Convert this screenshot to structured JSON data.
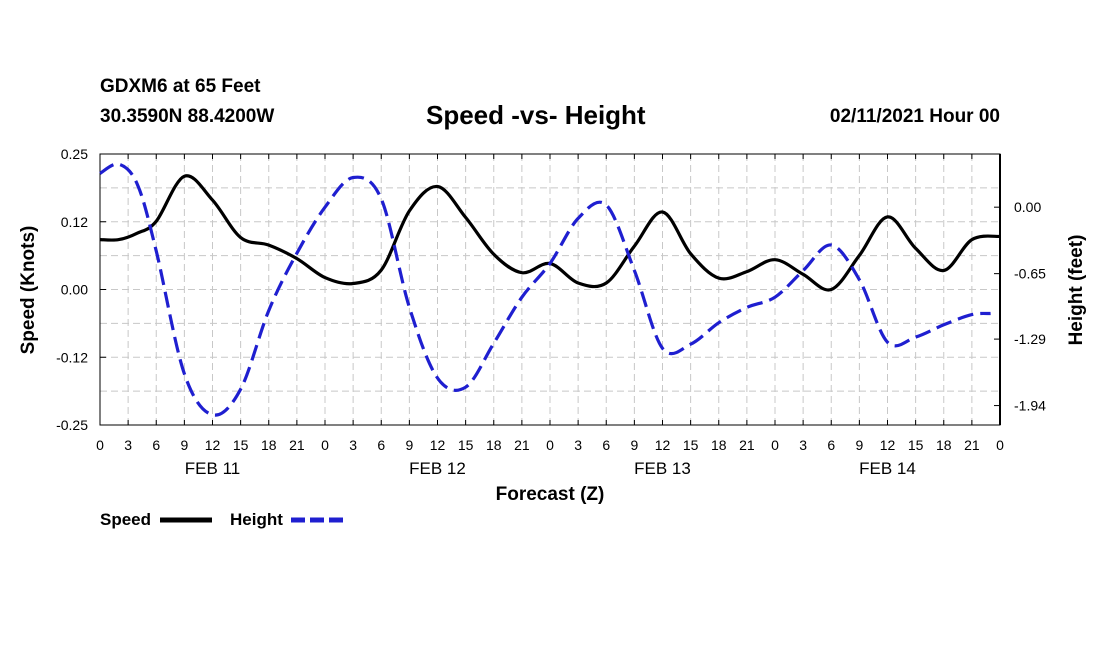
{
  "header": {
    "station": "GDXM6 at 65 Feet",
    "coords": "30.3590N 88.4200W",
    "title": "Speed -vs- Height",
    "runtime": "02/11/2021 Hour 00"
  },
  "legend": {
    "speed": "Speed",
    "height": "Height"
  },
  "colors": {
    "speed": "#000000",
    "height": "#1f1fd0",
    "grid": "#c8c8c8"
  },
  "chart_data": {
    "type": "line",
    "xlabel": "Forecast (Z)",
    "ylabel_left": "Speed (Knots)",
    "ylabel_right": "Height (feet)",
    "xlim": [
      0,
      96
    ],
    "ylim_left": [
      -0.25,
      0.25
    ],
    "ylim_right": [
      -2.13,
      0.52
    ],
    "grid": true,
    "x_tick_labels": [
      "0",
      "3",
      "6",
      "9",
      "12",
      "15",
      "18",
      "21",
      "0",
      "3",
      "6",
      "9",
      "12",
      "15",
      "18",
      "21",
      "0",
      "3",
      "6",
      "9",
      "12",
      "15",
      "18",
      "21",
      "0",
      "3",
      "6",
      "9",
      "12",
      "15",
      "18",
      "21",
      "0"
    ],
    "day_labels": [
      {
        "x": 12,
        "label": "FEB 11"
      },
      {
        "x": 36,
        "label": "FEB 12"
      },
      {
        "x": 60,
        "label": "FEB 13"
      },
      {
        "x": 84,
        "label": "FEB 14"
      }
    ],
    "left_ticks": [
      {
        "value": 0.25,
        "label": "0.25"
      },
      {
        "value": 0.125,
        "label": "0.12"
      },
      {
        "value": 0.0,
        "label": "0.00"
      },
      {
        "value": -0.125,
        "label": "-0.12"
      },
      {
        "value": -0.25,
        "label": "-0.25"
      }
    ],
    "right_ticks": [
      {
        "value": 0.0,
        "label": "0.00"
      },
      {
        "value": -0.65,
        "label": "-0.65"
      },
      {
        "value": -1.29,
        "label": "-1.29"
      },
      {
        "value": -1.94,
        "label": "-1.94"
      }
    ],
    "series": [
      {
        "name": "Speed",
        "axis": "left",
        "style": "solid",
        "x": [
          0,
          2,
          4,
          6,
          9,
          12,
          15,
          18,
          21,
          24,
          27,
          30,
          33,
          36,
          39,
          42,
          45,
          48,
          51,
          54,
          57,
          60,
          63,
          66,
          69,
          72,
          75,
          78,
          81,
          84,
          87,
          90,
          93,
          96
        ],
        "values": [
          0.092,
          0.092,
          0.104,
          0.126,
          0.209,
          0.165,
          0.096,
          0.082,
          0.057,
          0.022,
          0.011,
          0.036,
          0.145,
          0.19,
          0.133,
          0.065,
          0.031,
          0.048,
          0.012,
          0.012,
          0.08,
          0.143,
          0.066,
          0.021,
          0.033,
          0.055,
          0.028,
          0.0,
          0.063,
          0.134,
          0.076,
          0.035,
          0.092,
          0.098
        ]
      },
      {
        "name": "Height",
        "axis": "right",
        "style": "dashed",
        "x": [
          0,
          2,
          4,
          6,
          9,
          12,
          15,
          18,
          21,
          24,
          27,
          30,
          33,
          36,
          39,
          42,
          45,
          48,
          51,
          54,
          57,
          60,
          63,
          66,
          69,
          72,
          75,
          78,
          81,
          84,
          87,
          90,
          93,
          95
        ],
        "values": [
          0.33,
          0.42,
          0.22,
          -0.43,
          -1.63,
          -2.03,
          -1.78,
          -1.01,
          -0.45,
          0.0,
          0.29,
          0.08,
          -0.98,
          -1.67,
          -1.76,
          -1.33,
          -0.88,
          -0.55,
          -0.11,
          0.02,
          -0.62,
          -1.38,
          -1.34,
          -1.13,
          -0.98,
          -0.88,
          -0.62,
          -0.37,
          -0.71,
          -1.32,
          -1.27,
          -1.15,
          -1.05,
          -1.04
        ]
      }
    ]
  }
}
